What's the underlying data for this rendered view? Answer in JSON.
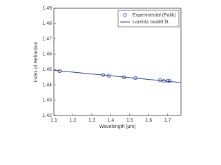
{
  "chart_data": {
    "type": "line",
    "x_label": "Wavelength [μm]",
    "y_label": "Index of Refraction",
    "xlim": [
      1.1,
      1.77
    ],
    "ylim": [
      1.42,
      1.49
    ],
    "xticks": [
      {
        "value": 1.1,
        "label": "1.1"
      },
      1.2,
      1.3,
      1.4,
      1.5,
      1.6,
      1.7
    ],
    "yticks": [
      {
        "value": 1.42,
        "label": "1.42"
      },
      1.43,
      1.44,
      1.45,
      1.46,
      1.47,
      1.48,
      1.49
    ],
    "legend": "upper right",
    "series": [
      {
        "name": "Experimental (Palik)",
        "color": "#1f3f8f",
        "style": "markers",
        "x": [
          1.13,
          1.36,
          1.39,
          1.47,
          1.53,
          1.66,
          1.68,
          1.7,
          1.71
        ],
        "values": [
          1.449,
          1.4465,
          1.446,
          1.445,
          1.4445,
          1.443,
          1.4425,
          1.4425,
          1.4425
        ]
      },
      {
        "name": "Lorentz model fit",
        "color": "#1f3f8f",
        "style": "line",
        "x": [
          1.1,
          1.77
        ],
        "values": [
          1.4495,
          1.4415
        ]
      }
    ]
  }
}
